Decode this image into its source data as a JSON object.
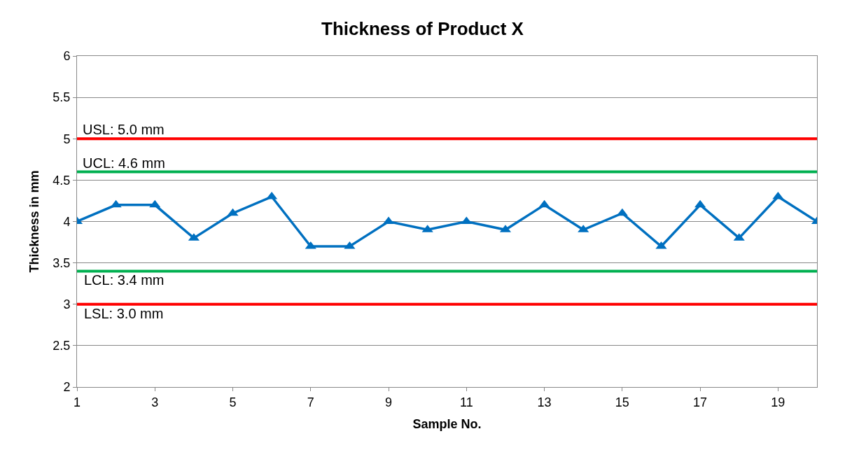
{
  "chart_data": {
    "type": "line",
    "title": "Thickness of Product X",
    "xlabel": "Sample No.",
    "ylabel": "Thickness in mm",
    "x": [
      1,
      2,
      3,
      4,
      5,
      6,
      7,
      8,
      9,
      10,
      11,
      12,
      13,
      14,
      15,
      16,
      17,
      18,
      19,
      20
    ],
    "series": [
      {
        "color": "#0070c0",
        "values": [
          4.0,
          4.2,
          4.2,
          3.8,
          4.1,
          4.3,
          3.7,
          3.7,
          4.0,
          3.9,
          4.0,
          3.9,
          4.2,
          3.9,
          4.1,
          3.7,
          4.2,
          3.8,
          4.3,
          4.0
        ]
      }
    ],
    "xlim": [
      1,
      20
    ],
    "xticks": [
      1,
      3,
      5,
      7,
      9,
      11,
      13,
      15,
      17,
      19
    ],
    "ylim": [
      2,
      6
    ],
    "yticks": [
      2,
      2.5,
      3,
      3.5,
      4,
      4.5,
      5,
      5.5,
      6
    ],
    "grid": "y",
    "marker": "triangle",
    "line_style": "solid",
    "ref_lines": [
      {
        "axis": "y",
        "value": 5.0,
        "label": "USL: 5.0 mm",
        "color": "#ff0000"
      },
      {
        "axis": "y",
        "value": 4.6,
        "label": "UCL: 4.6 mm",
        "color": "#00b050"
      },
      {
        "axis": "y",
        "value": 3.4,
        "label": "LCL: 3.4 mm",
        "color": "#00b050"
      },
      {
        "axis": "y",
        "value": 3.0,
        "label": "LSL: 3.0 mm",
        "color": "#ff0000"
      }
    ]
  }
}
